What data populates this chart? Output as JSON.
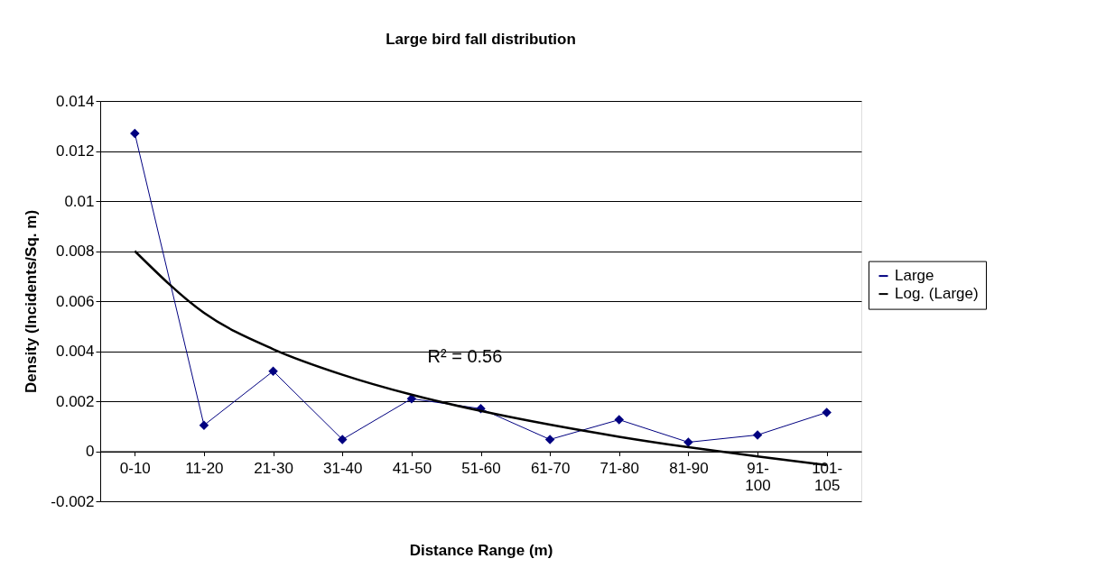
{
  "chart_data": {
    "type": "line",
    "title": "Large bird fall distribution",
    "xlabel": "Distance Range (m)",
    "ylabel": "Density (Incidents/Sq. m)",
    "categories": [
      "0-10",
      "11-20",
      "21-30",
      "31-40",
      "41-50",
      "51-60",
      "61-70",
      "71-80",
      "81-90",
      "91-100",
      "101-105"
    ],
    "series": [
      {
        "name": "Large",
        "color": "#000080",
        "marker": "diamond",
        "values": [
          0.0127,
          0.00104,
          0.0032,
          0.00047,
          0.0021,
          0.0017,
          0.00047,
          0.00126,
          0.00036,
          0.00065,
          0.00155
        ]
      },
      {
        "name": "Log. (Large)",
        "color": "#000000",
        "marker": "none",
        "values": [
          0.008,
          0.00553,
          0.00408,
          0.00306,
          0.00226,
          0.00161,
          0.00106,
          0.00058,
          0.00016,
          -0.00021,
          -0.00055
        ]
      }
    ],
    "ylim": [
      -0.002,
      0.014
    ],
    "yticks": [
      -0.002,
      0,
      0.002,
      0.004,
      0.006,
      0.008,
      0.01,
      0.012,
      0.014
    ],
    "annotations": [
      "R² = 0.56"
    ],
    "grid": "y",
    "legend": "right"
  }
}
